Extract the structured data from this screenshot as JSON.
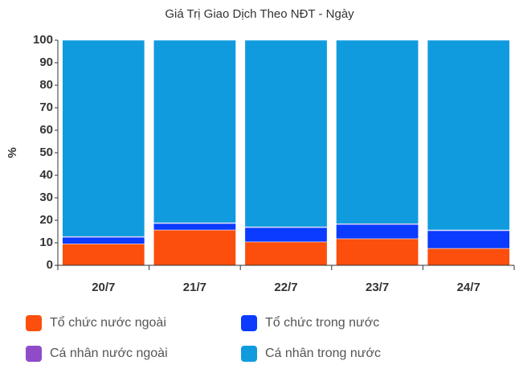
{
  "chart_data": {
    "type": "stacked_bar",
    "title": "Giá Trị Giao Dịch Theo NĐT - Ngày",
    "y_label": "%",
    "categories": [
      "20/7",
      "21/7",
      "22/7",
      "23/7",
      "24/7"
    ],
    "series": [
      {
        "name": "Tổ chức nước ngoài",
        "color": "#fc4e0c",
        "values": [
          9.5,
          15.7,
          10.4,
          11.8,
          7.5
        ]
      },
      {
        "name": "Tổ chức trong nước",
        "color": "#0a3bff",
        "values": [
          3,
          2.9,
          6.4,
          6.4,
          7.9
        ]
      },
      {
        "name": "Cá nhân nước ngoài",
        "color": "#8e4cc9",
        "values": [
          0.3,
          0.3,
          0.3,
          0.3,
          0.3
        ]
      },
      {
        "name": "Cá nhân trong nước",
        "color": "#109bdf",
        "values": [
          87.2,
          81.1,
          82.9,
          81.5,
          84.3
        ]
      }
    ],
    "ylim": [
      0,
      100
    ],
    "yticks": [
      0,
      10,
      20,
      30,
      40,
      50,
      60,
      70,
      80,
      90,
      100
    ],
    "grid": false,
    "legend": "bottom"
  }
}
